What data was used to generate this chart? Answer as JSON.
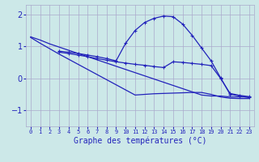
{
  "background_color": "#cce8e8",
  "grid_color": "#aaaacc",
  "line_color": "#2222bb",
  "xlabel": "Graphe des températures (°C)",
  "xlim": [
    -0.5,
    23.5
  ],
  "ylim": [
    -1.5,
    2.3
  ],
  "yticks": [
    -1,
    0,
    1,
    2
  ],
  "xticks": [
    0,
    1,
    2,
    3,
    4,
    5,
    6,
    7,
    8,
    9,
    10,
    11,
    12,
    13,
    14,
    15,
    16,
    17,
    18,
    19,
    20,
    21,
    22,
    23
  ],
  "series": [
    {
      "x": [
        0,
        1,
        2,
        3,
        4,
        5,
        6,
        7,
        8,
        9,
        10,
        11,
        12,
        13,
        14,
        15,
        16,
        17,
        18,
        19,
        20,
        21,
        22,
        23
      ],
      "y": [
        1.3,
        1.2,
        1.08,
        0.98,
        0.88,
        0.78,
        0.68,
        0.58,
        0.48,
        0.38,
        0.28,
        0.18,
        0.08,
        -0.02,
        -0.12,
        -0.22,
        -0.32,
        -0.42,
        -0.52,
        -0.55,
        -0.55,
        -0.58,
        -0.58,
        -0.58
      ],
      "marker": null,
      "linewidth": 0.9
    },
    {
      "x": [
        0,
        1,
        2,
        3,
        4,
        5,
        6,
        7,
        8,
        9,
        10,
        11,
        12,
        13,
        14,
        15,
        16,
        17,
        18,
        19,
        20,
        21,
        22,
        23
      ],
      "y": [
        1.28,
        1.1,
        0.93,
        0.76,
        0.6,
        0.44,
        0.28,
        0.12,
        -0.04,
        -0.2,
        -0.36,
        -0.52,
        -0.5,
        -0.48,
        -0.47,
        -0.46,
        -0.45,
        -0.44,
        -0.44,
        -0.5,
        -0.58,
        -0.62,
        -0.63,
        -0.63
      ],
      "marker": null,
      "linewidth": 0.9
    },
    {
      "x": [
        3,
        4,
        5,
        6,
        7,
        8,
        9,
        10,
        11,
        12,
        13,
        14,
        15,
        16,
        17,
        18,
        19,
        20,
        21,
        22,
        23
      ],
      "y": [
        0.85,
        0.82,
        0.78,
        0.73,
        0.68,
        0.62,
        0.55,
        1.1,
        1.5,
        1.75,
        1.88,
        1.95,
        1.93,
        1.7,
        1.35,
        0.95,
        0.55,
        0.02,
        -0.5,
        -0.55,
        -0.6
      ],
      "marker": "+",
      "markersize": 3.5,
      "linewidth": 0.9
    },
    {
      "x": [
        3,
        4,
        5,
        6,
        7,
        8,
        9,
        10,
        11,
        12,
        13,
        14,
        15,
        16,
        17,
        18,
        19,
        20,
        21,
        22,
        23
      ],
      "y": [
        0.82,
        0.78,
        0.73,
        0.68,
        0.62,
        0.57,
        0.52,
        0.48,
        0.44,
        0.41,
        0.37,
        0.34,
        0.52,
        0.5,
        0.47,
        0.44,
        0.4,
        0.0,
        -0.47,
        -0.53,
        -0.57
      ],
      "marker": "+",
      "markersize": 3.5,
      "linewidth": 0.9
    }
  ]
}
